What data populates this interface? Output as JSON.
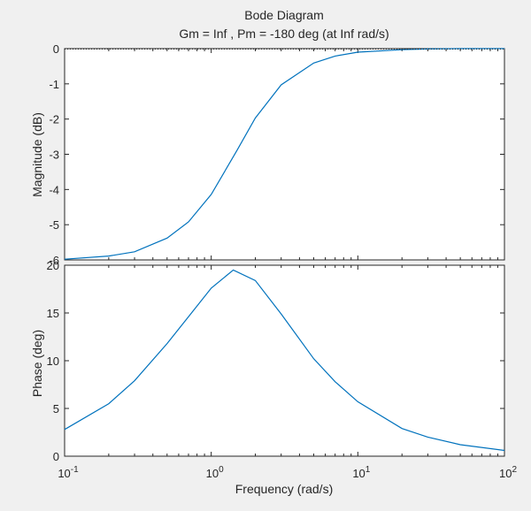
{
  "chart_data": [
    {
      "type": "line",
      "title": "Bode Diagram",
      "subtitle": "Gm = Inf ,  Pm = -180 deg (at Inf rad/s)",
      "xlabel": "Frequency  (rad/s)",
      "ylabel": "Magnitude (dB)",
      "xscale": "log",
      "xlim": [
        0.1,
        100
      ],
      "ylim": [
        -6,
        0
      ],
      "yticks": [
        "0",
        "-1",
        "-2",
        "-3",
        "-4",
        "-5",
        "-6"
      ],
      "series": [
        {
          "color": "#0072bd",
          "x": [
            0.1,
            0.2,
            0.3,
            0.5,
            0.7,
            1.0,
            1.5,
            2.0,
            3.0,
            5.0,
            7.0,
            10,
            20,
            30,
            50,
            100
          ],
          "y": [
            -5.98,
            -5.89,
            -5.77,
            -5.38,
            -4.92,
            -4.14,
            -2.89,
            -1.97,
            -1.03,
            -0.41,
            -0.21,
            -0.1,
            -0.03,
            -0.01,
            0.0,
            0.0
          ]
        }
      ]
    },
    {
      "type": "line",
      "xlabel": "Frequency  (rad/s)",
      "ylabel": "Phase (deg)",
      "xscale": "log",
      "xlim": [
        0.1,
        100
      ],
      "ylim": [
        0,
        20
      ],
      "yticks": [
        "0",
        "5",
        "10",
        "15",
        "20"
      ],
      "series": [
        {
          "color": "#0072bd",
          "x": [
            0.1,
            0.2,
            0.3,
            0.5,
            0.7,
            1.0,
            1.414,
            2.0,
            3.0,
            5.0,
            7.0,
            10,
            20,
            30,
            50,
            100
          ],
          "y": [
            2.8,
            5.5,
            7.9,
            11.8,
            14.6,
            17.6,
            19.5,
            18.4,
            14.9,
            10.2,
            7.8,
            5.7,
            2.9,
            2.0,
            1.2,
            0.6
          ]
        }
      ]
    }
  ],
  "xticks": [
    {
      "base": "10",
      "exp": "-1"
    },
    {
      "base": "10",
      "exp": "0"
    },
    {
      "base": "10",
      "exp": "1"
    },
    {
      "base": "10",
      "exp": "2"
    }
  ]
}
